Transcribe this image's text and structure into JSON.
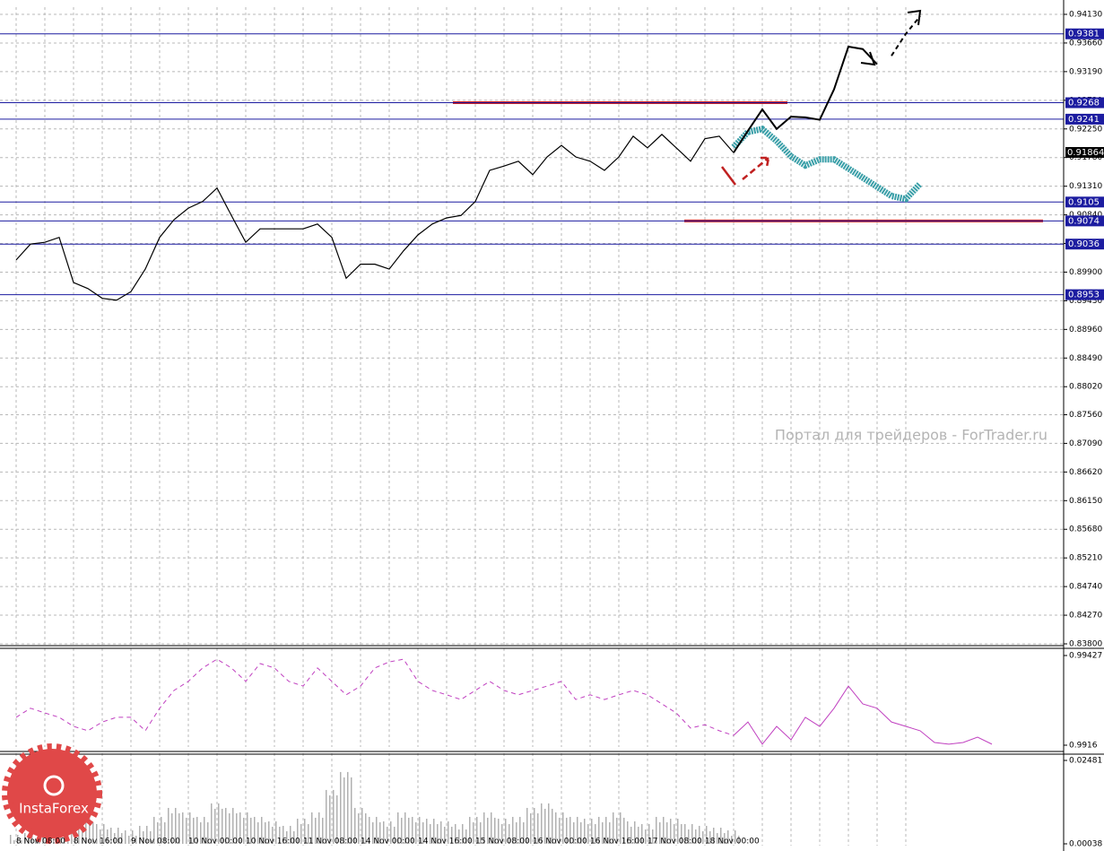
{
  "chart_data": [
    {
      "type": "line",
      "categories": [
        "8 Nov 08:00",
        null,
        null,
        null,
        "8 Nov 16:00",
        null,
        null,
        null,
        "9 Nov 08:00",
        null,
        null,
        null,
        "10 Nov 00:00",
        null,
        null,
        null,
        "10 Nov 16:00",
        null,
        null,
        null,
        "11 Nov 08:00",
        null,
        null,
        null,
        "14 Nov 00:00",
        null,
        null,
        null,
        "14 Nov 16:00",
        null,
        null,
        null,
        "15 Nov 08:00",
        null,
        null,
        null,
        "16 Nov 00:00",
        null,
        null,
        null,
        "16 Nov 16:00",
        null,
        null,
        null,
        "17 Nov 08:00",
        null,
        null,
        null,
        "18 Nov 00:00",
        null,
        null,
        null,
        null,
        null,
        null,
        null,
        null,
        null,
        null,
        null,
        null,
        null,
        null,
        null
      ],
      "ylim": [
        0.838,
        0.9413
      ],
      "yticks": [
        {
          "value": 0.9413,
          "label": "0.94130"
        },
        {
          "value": 0.9366,
          "label": "0.93660"
        },
        {
          "value": 0.9319,
          "label": "0.93190"
        },
        {
          "value": 0.9272,
          "label": "0.92720"
        },
        {
          "value": 0.9225,
          "label": "0.92250"
        },
        {
          "value": 0.9178,
          "label": "0.91780"
        },
        {
          "value": 0.9131,
          "label": "0.91310"
        },
        {
          "value": 0.9084,
          "label": "0.90840"
        },
        {
          "value": 0.9037,
          "label": "0.90370"
        },
        {
          "value": 0.899,
          "label": "0.89900"
        },
        {
          "value": 0.8943,
          "label": "0.89430"
        },
        {
          "value": 0.8896,
          "label": "0.88960"
        },
        {
          "value": 0.8849,
          "label": "0.88490"
        },
        {
          "value": 0.8802,
          "label": "0.88020"
        },
        {
          "value": 0.8756,
          "label": "0.87560"
        },
        {
          "value": 0.8709,
          "label": "0.87090"
        },
        {
          "value": 0.8662,
          "label": "0.86620"
        },
        {
          "value": 0.8615,
          "label": "0.86150"
        },
        {
          "value": 0.8568,
          "label": "0.85680"
        },
        {
          "value": 0.8521,
          "label": "0.85210"
        },
        {
          "value": 0.8474,
          "label": "0.84740"
        },
        {
          "value": 0.8427,
          "label": "0.84270"
        },
        {
          "value": 0.838,
          "label": "0.83800"
        }
      ],
      "grid": true,
      "levels": [
        0.9381,
        0.9268,
        0.9241,
        0.9105,
        0.9074,
        0.9036,
        0.8953
      ],
      "level_color": "#1c1ca0",
      "current_price": 0.91864,
      "red_lines": [
        {
          "value": 0.9268,
          "color": "#d02020"
        },
        {
          "value": 0.9074,
          "color": "#d02020"
        }
      ],
      "series": [
        {
          "color": "#000000",
          "width": 1.2,
          "values": [
            0.901,
            0.9036,
            0.9039,
            0.9047,
            0.8973,
            0.8963,
            0.8947,
            0.8944,
            0.8958,
            0.8995,
            0.9047,
            0.9076,
            0.9095,
            0.9106,
            0.9128,
            0.9083,
            0.9039,
            0.9061,
            0.9061,
            0.9061,
            0.9061,
            0.9069,
            0.9047,
            0.898,
            0.9003,
            0.9003,
            0.8995,
            0.9025,
            0.9051,
            0.9069,
            0.9079,
            0.9083,
            0.9106,
            0.9157,
            0.9164,
            0.9172,
            0.915,
            0.9179,
            0.9198,
            0.9179,
            0.9172,
            0.9157,
            0.9179,
            0.9213,
            0.9194,
            0.9216,
            0.9194,
            0.9172,
            0.9209,
            0.9213,
            0.9186,
            null,
            null,
            null,
            null,
            null,
            null,
            null,
            null,
            null,
            null,
            null,
            null,
            null
          ]
        },
        {
          "color": "#3a9fa8",
          "width": 7,
          "dash": true,
          "values": [
            null,
            null,
            null,
            null,
            null,
            null,
            null,
            null,
            null,
            null,
            null,
            null,
            null,
            null,
            null,
            null,
            null,
            null,
            null,
            null,
            null,
            null,
            null,
            null,
            null,
            null,
            null,
            null,
            null,
            null,
            null,
            null,
            null,
            null,
            null,
            null,
            null,
            null,
            null,
            null,
            null,
            null,
            null,
            null,
            null,
            null,
            null,
            null,
            null,
            null,
            0.9195,
            0.922,
            0.9225,
            0.9205,
            0.918,
            0.9165,
            0.9175,
            0.9175,
            0.916,
            0.9145,
            0.913,
            0.9115,
            0.911,
            0.9135
          ]
        },
        {
          "color": "#000000",
          "width": 2,
          "values": [
            null,
            null,
            null,
            null,
            null,
            null,
            null,
            null,
            null,
            null,
            null,
            null,
            null,
            null,
            null,
            null,
            null,
            null,
            null,
            null,
            null,
            null,
            null,
            null,
            null,
            null,
            null,
            null,
            null,
            null,
            null,
            null,
            null,
            null,
            null,
            null,
            null,
            null,
            null,
            null,
            null,
            null,
            null,
            null,
            null,
            null,
            null,
            null,
            null,
            null,
            0.9186,
            0.9222,
            0.9257,
            0.9225,
            0.9245,
            0.9244,
            0.924,
            0.929,
            0.936,
            0.9356,
            0.9331,
            null,
            null,
            null
          ]
        },
        {
          "color": "#000000",
          "width": 2,
          "dash": true,
          "values": [
            null,
            null,
            null,
            null,
            null,
            null,
            null,
            null,
            null,
            null,
            null,
            null,
            null,
            null,
            null,
            null,
            null,
            null,
            null,
            null,
            null,
            null,
            null,
            null,
            null,
            null,
            null,
            null,
            null,
            null,
            null,
            null,
            null,
            null,
            null,
            null,
            null,
            null,
            null,
            null,
            null,
            null,
            null,
            null,
            null,
            null,
            null,
            null,
            null,
            null,
            null,
            null,
            null,
            null,
            null,
            null,
            null,
            null,
            null,
            null,
            null,
            0.9345,
            0.9381,
            0.941
          ]
        }
      ],
      "watermark": "Портал для трейдеров - ForTrader.ru",
      "logo": "InstaForex"
    },
    {
      "type": "line",
      "ylim": [
        0.9916,
        0.99427
      ],
      "yticks": [
        0.99427,
        0.9916
      ],
      "series": [
        {
          "color": "#c040c0",
          "dash": true,
          "values": [
            0.99243,
            0.9927,
            0.99256,
            0.99243,
            0.99216,
            0.99203,
            0.99229,
            0.99243,
            0.99243,
            0.99203,
            0.9927,
            0.99323,
            0.9935,
            0.9939,
            0.99416,
            0.9939,
            0.9935,
            0.99403,
            0.9939,
            0.9935,
            0.99336,
            0.9939,
            0.9935,
            0.9931,
            0.99336,
            0.9939,
            0.99408,
            0.99416,
            0.9935,
            0.99323,
            0.9931,
            0.99296,
            0.99323,
            0.9935,
            0.99323,
            0.9931,
            0.99323,
            0.99336,
            0.9935,
            0.99296,
            0.9931,
            0.99296,
            0.9931,
            0.99323,
            0.9931,
            0.99283,
            0.99256,
            0.99211,
            0.99221,
            0.99203,
            0.99189,
            null,
            null,
            null,
            null,
            null,
            null,
            null,
            null,
            null,
            null,
            null,
            null,
            null,
            null,
            null,
            null,
            null,
            null
          ]
        },
        {
          "color": "#c040c0",
          "values": [
            null,
            null,
            null,
            null,
            null,
            null,
            null,
            null,
            null,
            null,
            null,
            null,
            null,
            null,
            null,
            null,
            null,
            null,
            null,
            null,
            null,
            null,
            null,
            null,
            null,
            null,
            null,
            null,
            null,
            null,
            null,
            null,
            null,
            null,
            null,
            null,
            null,
            null,
            null,
            null,
            null,
            null,
            null,
            null,
            null,
            null,
            null,
            null,
            null,
            null,
            0.99189,
            0.99229,
            0.99163,
            0.99216,
            0.99176,
            0.99243,
            0.99216,
            0.9927,
            0.99336,
            0.99283,
            0.9927,
            0.99229,
            0.99216,
            0.99203,
            0.99168,
            0.99163,
            0.99168,
            0.99184,
            0.99163
          ]
        }
      ]
    },
    {
      "type": "bar",
      "ylim": [
        0.00038,
        0.02481
      ],
      "yticks": [
        0.02481,
        0.00038
      ],
      "color": "#b0b0b0",
      "values": [
        0.00301,
        0.00354,
        0.00433,
        0.00564,
        0.00696,
        0.00827,
        0.00617,
        0.00511,
        0.00433,
        0.00564,
        0.00827,
        0.0109,
        0.00959,
        0.00827,
        0.01222,
        0.0109,
        0.00959,
        0.00827,
        0.00696,
        0.00564,
        0.00774,
        0.00959,
        0.01616,
        0.02142,
        0.0109,
        0.00827,
        0.00696,
        0.00959,
        0.00827,
        0.00774,
        0.00696,
        0.00617,
        0.00827,
        0.00959,
        0.00774,
        0.00827,
        0.0109,
        0.01222,
        0.00959,
        0.00827,
        0.00774,
        0.00827,
        0.00959,
        0.00696,
        0.00617,
        0.00827,
        0.00774,
        0.00617,
        0.00564,
        0.00511,
        0.00433
      ]
    }
  ]
}
